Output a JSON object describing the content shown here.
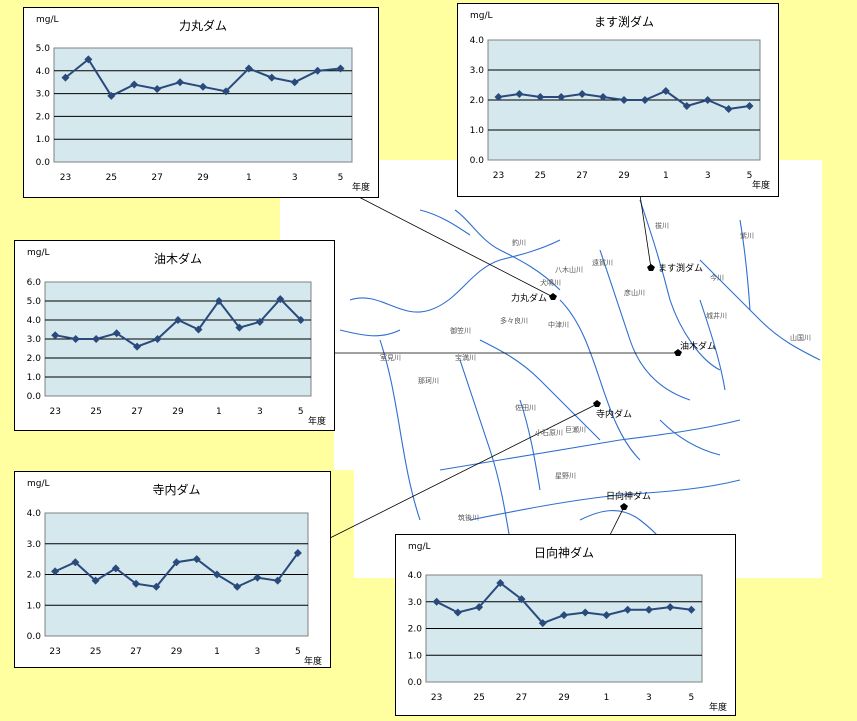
{
  "colors": {
    "background": "#ffffa0",
    "plot_area": "#d4e8ee",
    "series": "#2a4a7c",
    "river": "#2f6fcf"
  },
  "map": {
    "dam_labels": [
      "力丸ダム",
      "ます渕ダム",
      "油木ダム",
      "寺内ダム",
      "日向神ダム"
    ],
    "river_labels": [
      "犬鳴川",
      "八木山川",
      "遠賀川",
      "彦山川",
      "今川",
      "祓川",
      "城井川",
      "山国川",
      "紫川",
      "多々良川",
      "那珂川",
      "御笠川",
      "宝満川",
      "佐田川",
      "小石原川",
      "巨瀬川",
      "星野川",
      "釣川",
      "室見川",
      "筑後川",
      "中津川"
    ]
  },
  "unit_label": "mg/L",
  "year_label": "年度",
  "x_ticks": [
    "23",
    "25",
    "27",
    "29",
    "1",
    "3",
    "5"
  ],
  "chart_data": [
    {
      "type": "line",
      "title": "力丸ダム",
      "ylabel": "mg/L",
      "xlabel": "年度",
      "x": [
        "23",
        "24",
        "25",
        "26",
        "27",
        "28",
        "29",
        "30",
        "1",
        "2",
        "3",
        "4",
        "5"
      ],
      "values": [
        3.7,
        4.5,
        2.9,
        3.4,
        3.2,
        3.5,
        3.3,
        3.1,
        4.1,
        3.7,
        3.5,
        4.0,
        4.1
      ],
      "ylim": [
        0,
        5
      ],
      "yticks": [
        "0.0",
        "1.0",
        "2.0",
        "3.0",
        "4.0",
        "5.0"
      ],
      "grid": true
    },
    {
      "type": "line",
      "title": "ます渕ダム",
      "ylabel": "mg/L",
      "xlabel": "年度",
      "x": [
        "23",
        "24",
        "25",
        "26",
        "27",
        "28",
        "29",
        "30",
        "1",
        "2",
        "3",
        "4",
        "5"
      ],
      "values": [
        2.1,
        2.2,
        2.1,
        2.1,
        2.2,
        2.1,
        2.0,
        2.0,
        2.3,
        1.8,
        2.0,
        1.7,
        1.8
      ],
      "ylim": [
        0,
        4
      ],
      "yticks": [
        "0.0",
        "1.0",
        "2.0",
        "3.0",
        "4.0"
      ],
      "grid": true
    },
    {
      "type": "line",
      "title": "油木ダム",
      "ylabel": "mg/L",
      "xlabel": "年度",
      "x": [
        "23",
        "24",
        "25",
        "26",
        "27",
        "28",
        "29",
        "30",
        "1",
        "2",
        "3",
        "4",
        "5"
      ],
      "values": [
        3.2,
        3.0,
        3.0,
        3.3,
        2.6,
        3.0,
        4.0,
        3.5,
        5.0,
        3.6,
        3.9,
        5.1,
        4.0
      ],
      "ylim": [
        0,
        6
      ],
      "yticks": [
        "0.0",
        "1.0",
        "2.0",
        "3.0",
        "4.0",
        "5.0",
        "6.0"
      ],
      "grid": true
    },
    {
      "type": "line",
      "title": "寺内ダム",
      "ylabel": "mg/L",
      "xlabel": "年度",
      "x": [
        "23",
        "24",
        "25",
        "26",
        "27",
        "28",
        "29",
        "30",
        "1",
        "2",
        "3",
        "4",
        "5"
      ],
      "values": [
        2.1,
        2.4,
        1.8,
        2.2,
        1.7,
        1.6,
        2.4,
        2.5,
        2.0,
        1.6,
        1.9,
        1.8,
        2.7
      ],
      "ylim": [
        0,
        4
      ],
      "yticks": [
        "0.0",
        "1.0",
        "2.0",
        "3.0",
        "4.0"
      ],
      "grid": true
    },
    {
      "type": "line",
      "title": "日向神ダム",
      "ylabel": "mg/L",
      "xlabel": "年度",
      "x": [
        "23",
        "24",
        "25",
        "26",
        "27",
        "28",
        "29",
        "30",
        "1",
        "2",
        "3",
        "4",
        "5"
      ],
      "values": [
        3.0,
        2.6,
        2.8,
        3.7,
        3.1,
        2.2,
        2.5,
        2.6,
        2.5,
        2.7,
        2.7,
        2.8,
        2.7
      ],
      "ylim": [
        0,
        4
      ],
      "yticks": [
        "0.0",
        "1.0",
        "2.0",
        "3.0",
        "4.0"
      ],
      "grid": true
    }
  ]
}
